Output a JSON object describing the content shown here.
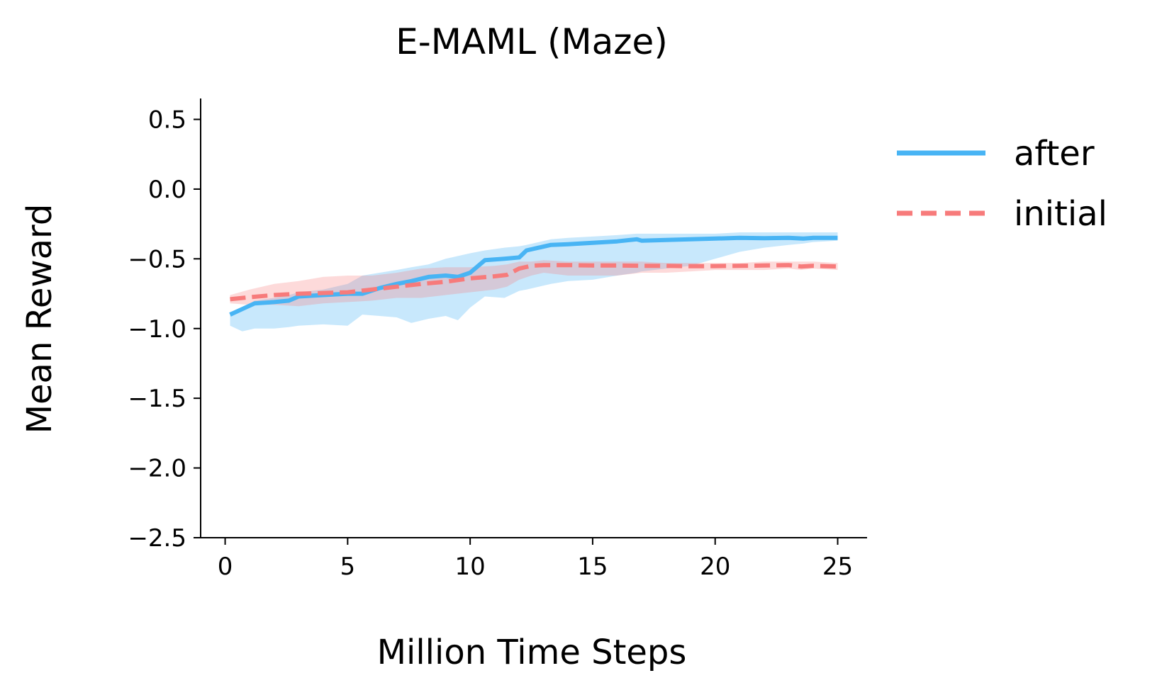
{
  "chart_data": {
    "type": "line",
    "title": "E-MAML (Maze)",
    "xlabel": "Million Time Steps",
    "ylabel": "Mean Reward",
    "xlim": [
      -1.0,
      26.2
    ],
    "ylim": [
      -2.5,
      0.65
    ],
    "xticks": [
      0,
      5,
      10,
      15,
      20,
      25
    ],
    "xtick_labels": [
      "0",
      "5",
      "10",
      "15",
      "20",
      "25"
    ],
    "yticks": [
      0.5,
      0.0,
      -0.5,
      -1.0,
      -1.5,
      -2.0,
      -2.5
    ],
    "ytick_labels": [
      "0.5",
      "0.0",
      "−0.5",
      "−1.0",
      "−1.5",
      "−2.0",
      "−2.5"
    ],
    "grid": false,
    "legend_position": "outside-right",
    "series": [
      {
        "name": "after",
        "color": "#48b4f4",
        "style": "solid",
        "x": [
          0.2,
          0.7,
          1.2,
          2.0,
          2.6,
          3.0,
          4.0,
          5.0,
          5.6,
          6.3,
          7.0,
          7.6,
          8.3,
          9.0,
          9.5,
          10.0,
          10.6,
          11.4,
          12.0,
          12.3,
          12.8,
          13.3,
          14.0,
          15.0,
          16.0,
          16.8,
          17.0,
          18.0,
          19.0,
          20.0,
          21.0,
          22.0,
          23.0,
          23.6,
          24.0,
          25.0
        ],
        "y": [
          -0.9,
          -0.86,
          -0.82,
          -0.81,
          -0.8,
          -0.77,
          -0.76,
          -0.75,
          -0.75,
          -0.71,
          -0.68,
          -0.66,
          -0.63,
          -0.62,
          -0.63,
          -0.6,
          -0.51,
          -0.5,
          -0.49,
          -0.44,
          -0.42,
          -0.4,
          -0.395,
          -0.385,
          -0.375,
          -0.36,
          -0.37,
          -0.365,
          -0.36,
          -0.355,
          -0.35,
          -0.352,
          -0.35,
          -0.355,
          -0.35,
          -0.35
        ],
        "band_upper": [
          -0.88,
          -0.86,
          -0.8,
          -0.78,
          -0.76,
          -0.74,
          -0.72,
          -0.68,
          -0.62,
          -0.6,
          -0.58,
          -0.56,
          -0.54,
          -0.5,
          -0.48,
          -0.46,
          -0.44,
          -0.42,
          -0.41,
          -0.4,
          -0.38,
          -0.36,
          -0.35,
          -0.34,
          -0.33,
          -0.32,
          -0.32,
          -0.32,
          -0.32,
          -0.32,
          -0.31,
          -0.31,
          -0.31,
          -0.31,
          -0.31,
          -0.31
        ],
        "band_lower": [
          -0.98,
          -1.02,
          -1.0,
          -1.0,
          -0.99,
          -0.98,
          -0.97,
          -0.98,
          -0.9,
          -0.91,
          -0.92,
          -0.96,
          -0.93,
          -0.91,
          -0.94,
          -0.85,
          -0.77,
          -0.78,
          -0.73,
          -0.72,
          -0.7,
          -0.68,
          -0.66,
          -0.65,
          -0.62,
          -0.6,
          -0.59,
          -0.57,
          -0.55,
          -0.5,
          -0.45,
          -0.42,
          -0.4,
          -0.39,
          -0.38,
          -0.37
        ]
      },
      {
        "name": "initial",
        "color": "#f77b7b",
        "style": "dashed",
        "x": [
          0.2,
          1.0,
          2.0,
          3.0,
          4.0,
          5.0,
          6.0,
          7.0,
          8.0,
          9.0,
          10.0,
          11.0,
          11.5,
          12.0,
          12.5,
          13.0,
          14.0,
          15.0,
          16.0,
          17.0,
          18.0,
          19.0,
          20.0,
          21.0,
          22.0,
          23.0,
          23.5,
          24.0,
          25.0
        ],
        "y": [
          -0.79,
          -0.775,
          -0.76,
          -0.75,
          -0.745,
          -0.74,
          -0.72,
          -0.7,
          -0.68,
          -0.665,
          -0.64,
          -0.625,
          -0.615,
          -0.57,
          -0.55,
          -0.545,
          -0.545,
          -0.548,
          -0.548,
          -0.55,
          -0.55,
          -0.553,
          -0.552,
          -0.55,
          -0.548,
          -0.545,
          -0.555,
          -0.55,
          -0.555
        ],
        "band_upper": [
          -0.76,
          -0.72,
          -0.68,
          -0.66,
          -0.63,
          -0.62,
          -0.62,
          -0.6,
          -0.57,
          -0.56,
          -0.56,
          -0.55,
          -0.54,
          -0.52,
          -0.52,
          -0.51,
          -0.52,
          -0.52,
          -0.52,
          -0.52,
          -0.53,
          -0.53,
          -0.53,
          -0.53,
          -0.52,
          -0.52,
          -0.52,
          -0.52,
          -0.53
        ],
        "band_lower": [
          -0.82,
          -0.83,
          -0.83,
          -0.84,
          -0.82,
          -0.81,
          -0.8,
          -0.78,
          -0.78,
          -0.76,
          -0.74,
          -0.72,
          -0.7,
          -0.65,
          -0.62,
          -0.6,
          -0.62,
          -0.62,
          -0.62,
          -0.6,
          -0.6,
          -0.59,
          -0.58,
          -0.58,
          -0.58,
          -0.57,
          -0.58,
          -0.57,
          -0.58
        ]
      }
    ]
  }
}
